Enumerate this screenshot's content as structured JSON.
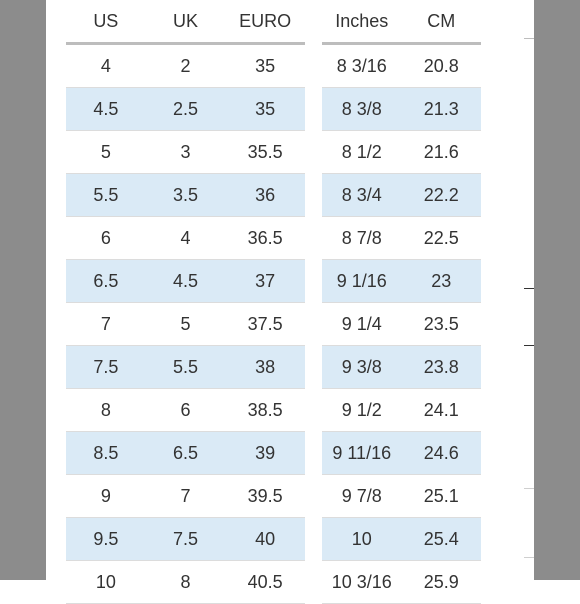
{
  "left_table": {
    "headers": [
      "US",
      "UK",
      "EURO"
    ],
    "rows": [
      [
        "4",
        "2",
        "35"
      ],
      [
        "4.5",
        "2.5",
        "35"
      ],
      [
        "5",
        "3",
        "35.5"
      ],
      [
        "5.5",
        "3.5",
        "36"
      ],
      [
        "6",
        "4",
        "36.5"
      ],
      [
        "6.5",
        "4.5",
        "37"
      ],
      [
        "7",
        "5",
        "37.5"
      ],
      [
        "7.5",
        "5.5",
        "38"
      ],
      [
        "8",
        "6",
        "38.5"
      ],
      [
        "8.5",
        "6.5",
        "39"
      ],
      [
        "9",
        "7",
        "39.5"
      ],
      [
        "9.5",
        "7.5",
        "40"
      ],
      [
        "10",
        "8",
        "40.5"
      ]
    ]
  },
  "right_table": {
    "headers": [
      "Inches",
      "CM"
    ],
    "rows": [
      [
        "8 3/16",
        "20.8"
      ],
      [
        "8 3/8",
        "21.3"
      ],
      [
        "8 1/2",
        "21.6"
      ],
      [
        "8 3/4",
        "22.2"
      ],
      [
        "8 7/8",
        "22.5"
      ],
      [
        "9 1/16",
        "23"
      ],
      [
        "9 1/4",
        "23.5"
      ],
      [
        "9 3/8",
        "23.8"
      ],
      [
        "9 1/2",
        "24.1"
      ],
      [
        "9 11/16",
        "24.6"
      ],
      [
        "9 7/8",
        "25.1"
      ],
      [
        "10",
        "25.4"
      ],
      [
        "10 3/16",
        "25.9"
      ]
    ]
  },
  "colors": {
    "stripe": "#daeaf6",
    "text": "#333333",
    "header_rule": "#bdbdbd",
    "overlay": "#8c8c8c"
  }
}
